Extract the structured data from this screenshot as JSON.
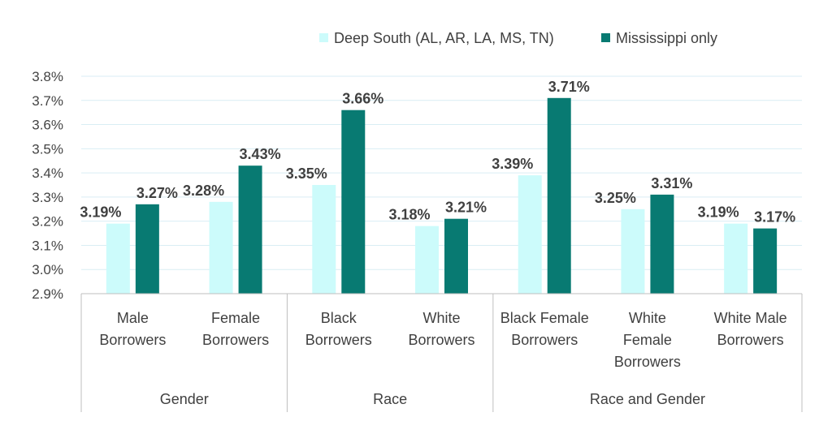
{
  "chart_data": {
    "type": "bar",
    "title": "",
    "xlabel": "",
    "ylabel": "",
    "ylim": [
      2.9,
      3.8
    ],
    "ytick_step": 0.1,
    "ytick_labels": [
      "2.9%",
      "3.0%",
      "3.1%",
      "3.2%",
      "3.3%",
      "3.4%",
      "3.5%",
      "3.6%",
      "3.7%",
      "3.8%"
    ],
    "grid": true,
    "legend_position": "top-right",
    "colors": {
      "Deep South (AL, AR, LA, MS, TN)": "#ccfbfb",
      "Mississippi only": "#087a72"
    },
    "categories": [
      [
        "Male",
        "Borrowers"
      ],
      [
        "Female",
        "Borrowers"
      ],
      [
        "Black",
        "Borrowers"
      ],
      [
        "White",
        "Borrowers"
      ],
      [
        "Black Female",
        "Borrowers"
      ],
      [
        "White",
        "Female",
        "Borrowers"
      ],
      [
        "White Male",
        "Borrowers"
      ]
    ],
    "groups": [
      {
        "label": "Gender",
        "count": 2
      },
      {
        "label": "Race",
        "count": 2
      },
      {
        "label": "Race and Gender",
        "count": 3
      }
    ],
    "series": [
      {
        "name": "Deep South (AL, AR, LA, MS, TN)",
        "values": [
          3.19,
          3.28,
          3.35,
          3.18,
          3.39,
          3.25,
          3.19
        ],
        "labels": [
          "3.19%",
          "3.28%",
          "3.35%",
          "3.18%",
          "3.39%",
          "3.25%",
          "3.19%"
        ]
      },
      {
        "name": "Mississippi only",
        "values": [
          3.27,
          3.43,
          3.66,
          3.21,
          3.71,
          3.31,
          3.17
        ],
        "labels": [
          "3.27%",
          "3.43%",
          "3.66%",
          "3.21%",
          "3.71%",
          "3.31%",
          "3.17%"
        ]
      }
    ]
  }
}
